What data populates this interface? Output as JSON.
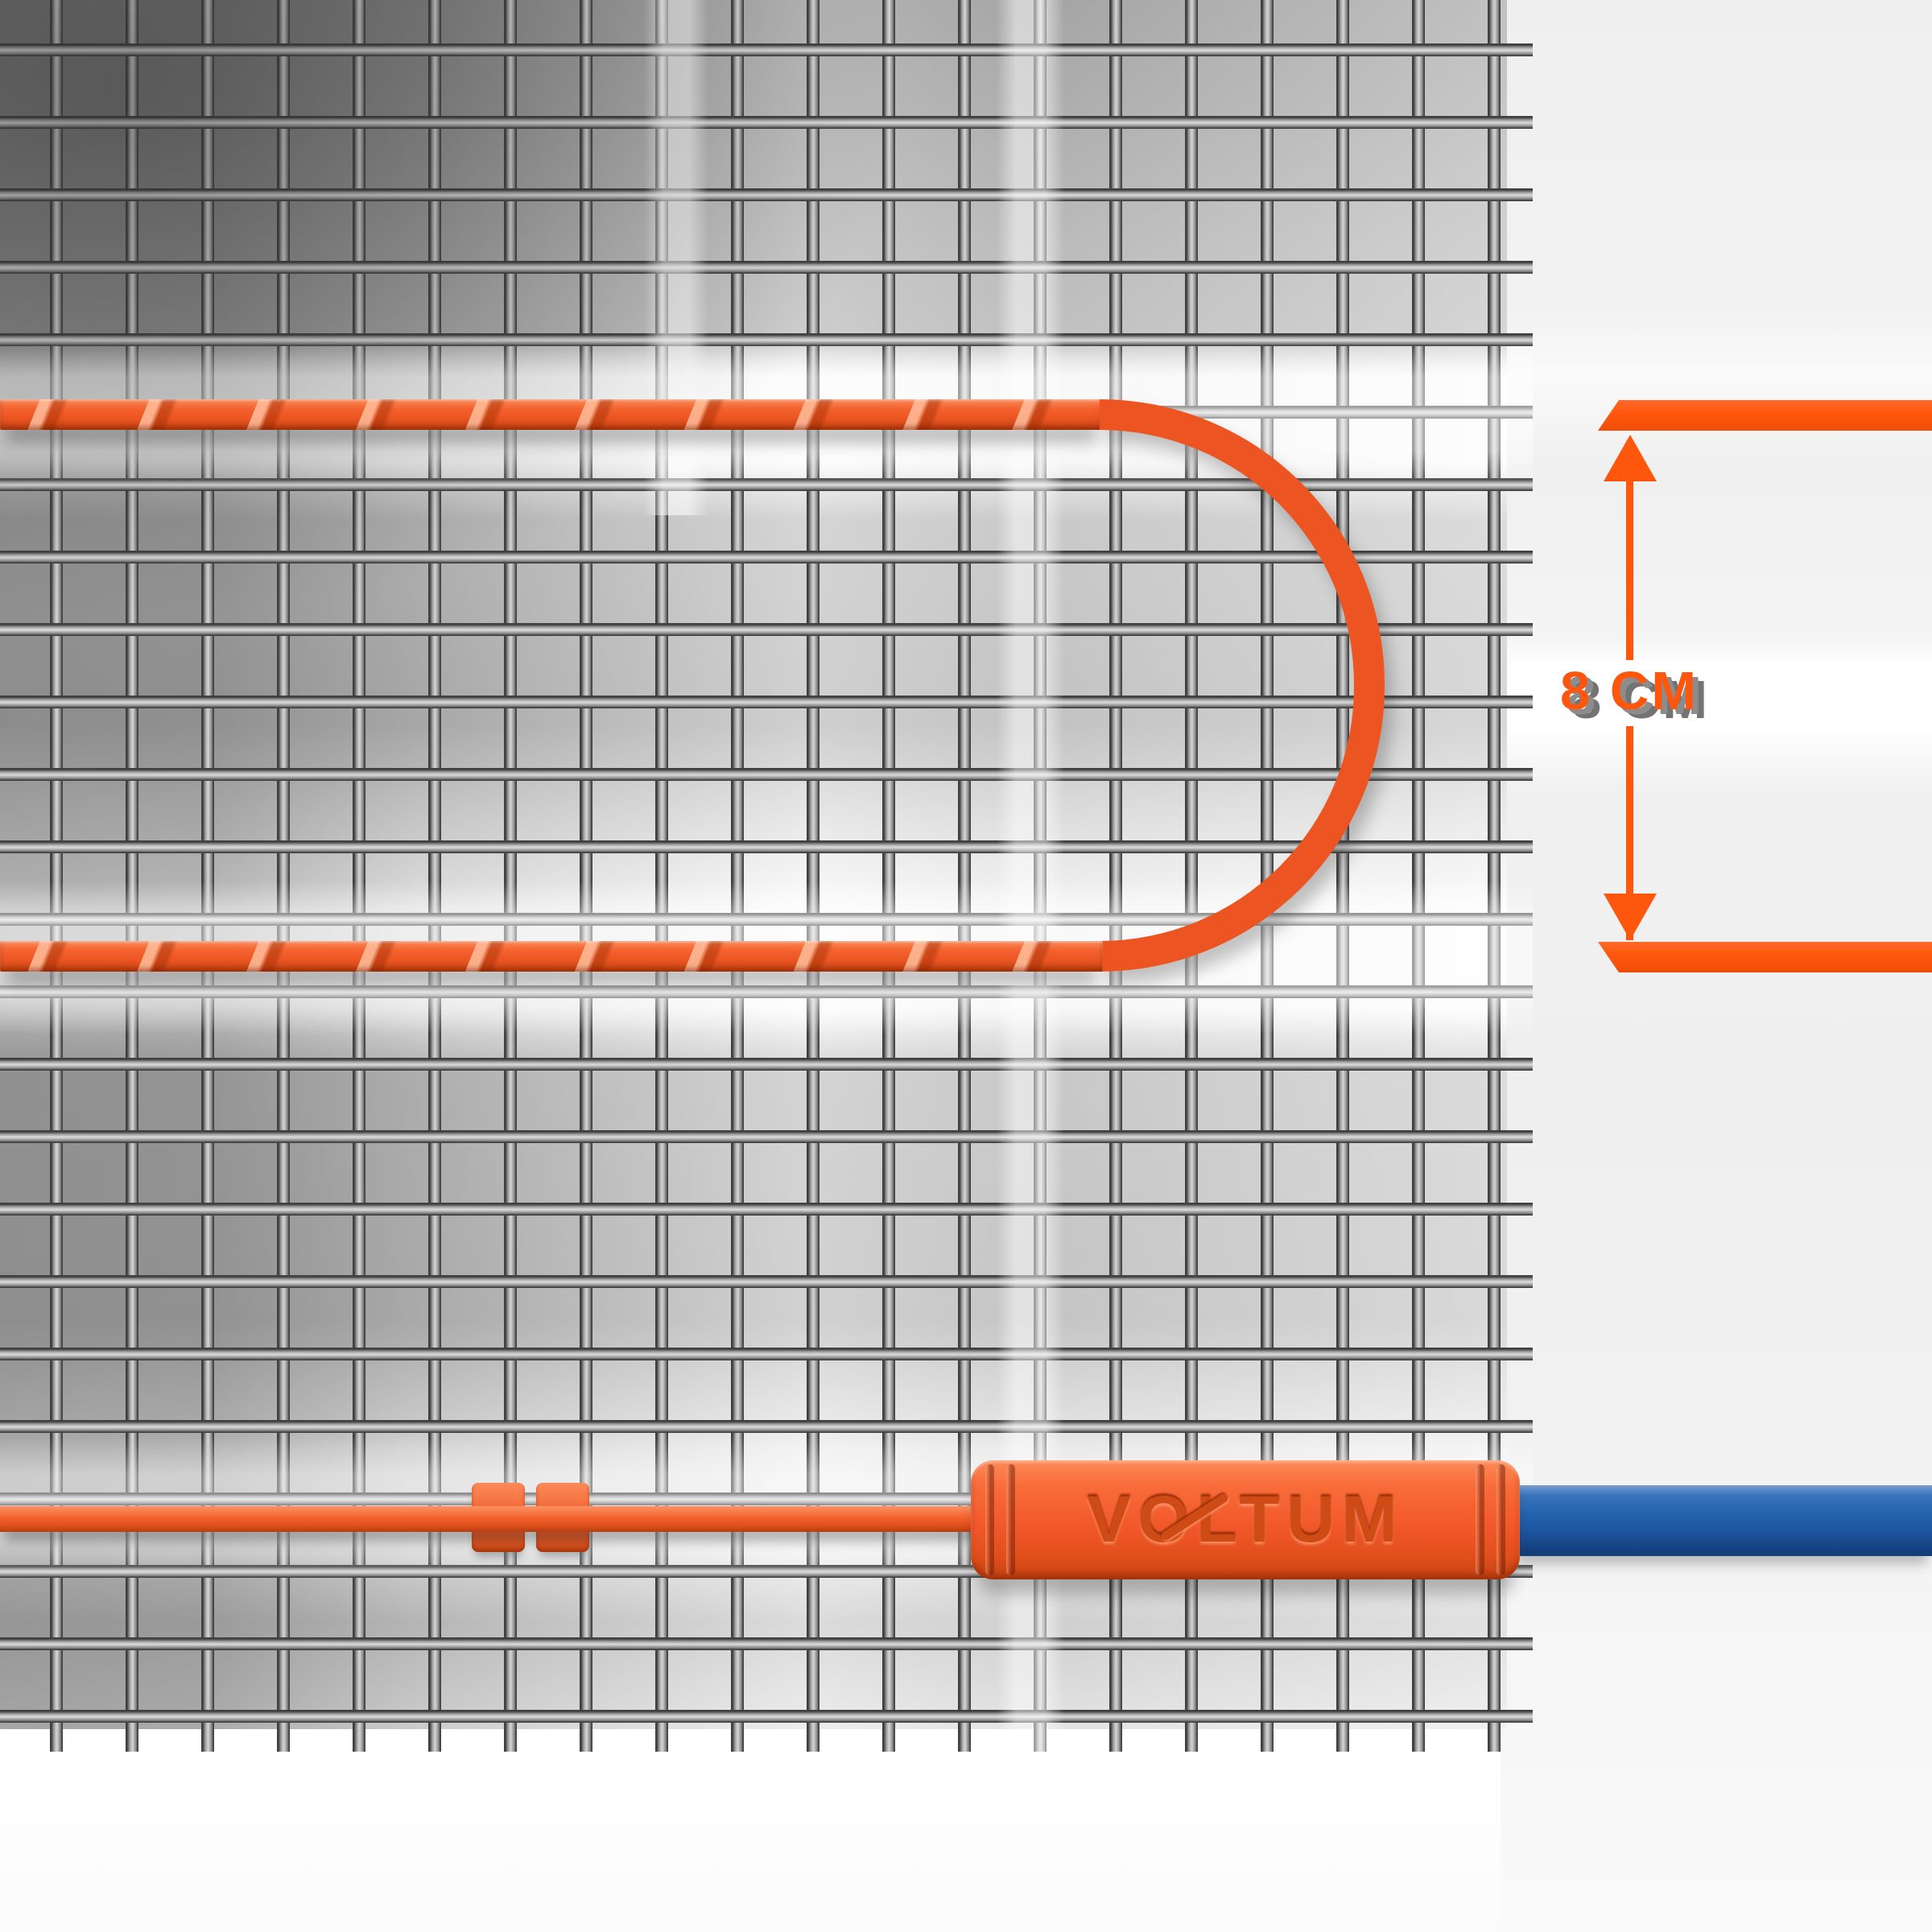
{
  "dimension": {
    "label": "8 CM"
  },
  "connector": {
    "brand": "VOLTUM"
  },
  "colors": {
    "accent_orange": "#ff560d",
    "cable_orange": "#ec5522",
    "connector_text": "#cf4b16",
    "supply_blue": "#2563ae",
    "mesh_wire_gray": "#8f8f8f"
  }
}
